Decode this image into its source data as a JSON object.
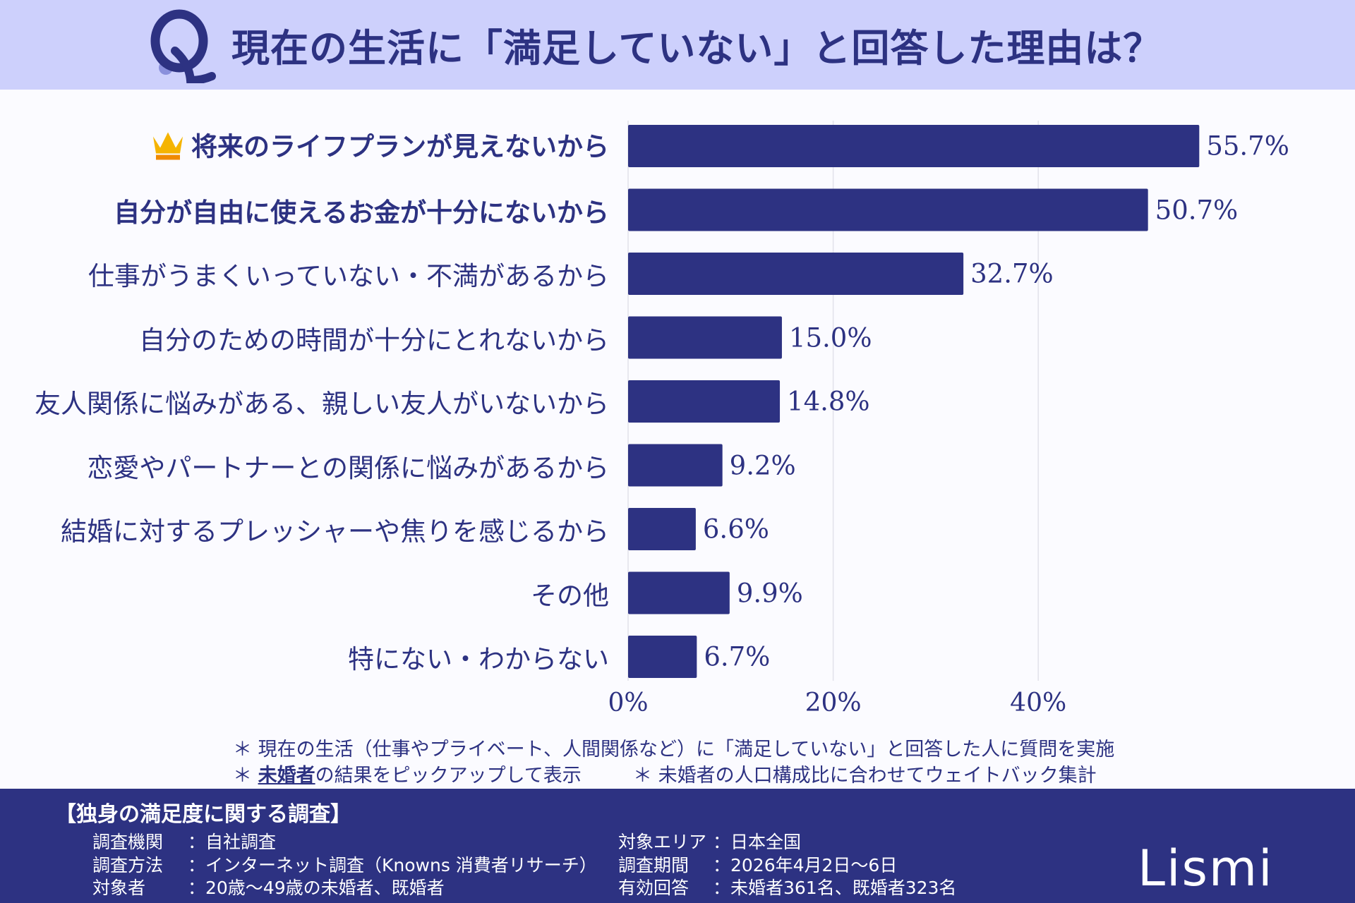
{
  "header": {
    "title": "現在の生活に「満足していない」と回答した理由は？",
    "icon": "q-letter-icon"
  },
  "chart_data": {
    "type": "bar",
    "orientation": "horizontal",
    "categories": [
      "将来のライフプランが見えないから",
      "自分が自由に使えるお金が十分にないから",
      "仕事がうまくいっていない・不満があるから",
      "自分のための時間が十分にとれないから",
      "友人関係に悩みがある、親しい友人がいないから",
      "恋愛やパートナーとの関係に悩みがあるから",
      "結婚に対するプレッシャーや焦りを感じるから",
      "その他",
      "特にない・わからない"
    ],
    "values": [
      55.7,
      50.7,
      32.7,
      15.0,
      14.8,
      9.2,
      6.6,
      9.9,
      6.7
    ],
    "value_labels": [
      "55.7%",
      "50.7%",
      "32.7%",
      "15.0%",
      "14.8%",
      "9.2%",
      "6.6%",
      "9.9%",
      "6.7%"
    ],
    "bold_categories": [
      0,
      1
    ],
    "crown_on": 0,
    "xticks": [
      "0%",
      "20%",
      "40%"
    ],
    "xtick_values": [
      0,
      20,
      40
    ],
    "grid": true,
    "bar_color": "#2d3282"
  },
  "notes": {
    "line1": "＊ 現在の生活（仕事やプライベート、人間関係など）に「満足していない」と回答した人に質問を実施",
    "line2_prefix": "＊ ",
    "line2_underlined": "未婚者",
    "line2_rest": "の結果をピックアップして表示",
    "line3": "＊ 未婚者の人口構成比に合わせてウェイトバック集計"
  },
  "footer": {
    "title": "【独身の満足度に関する調査】",
    "left": [
      {
        "label": "調査機関",
        "value": "：自社調査"
      },
      {
        "label": "調査方法",
        "value": "：インターネット調査（Knowns 消費者リサーチ）"
      },
      {
        "label": "対象者",
        "value": "：20歳〜49歳の未婚者、既婚者"
      }
    ],
    "right": [
      {
        "label": "対象エリア",
        "value": "：日本全国"
      },
      {
        "label": "調査期間",
        "value": "：2026年4月2日〜6日"
      },
      {
        "label": "有効回答",
        "value": "：未婚者361名、既婚者323名"
      }
    ],
    "logo": "Lismi"
  },
  "colors": {
    "header_bg": "#cdd0fc",
    "accent": "#2d3282",
    "crown": "#f5b400"
  }
}
